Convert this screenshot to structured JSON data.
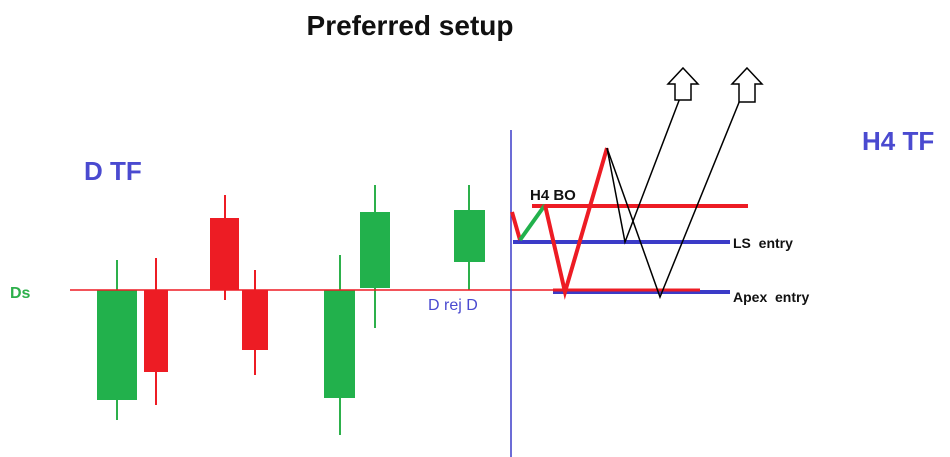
{
  "title": "Preferred setup",
  "labels": {
    "daily_tf": "D TF",
    "h4_tf": "H4 TF",
    "ds": "Ds",
    "d_rej": "D rej D",
    "h4_bo": "H4 BO",
    "ls_entry": "LS  entry",
    "apex_entry": "Apex  entry"
  }
}
